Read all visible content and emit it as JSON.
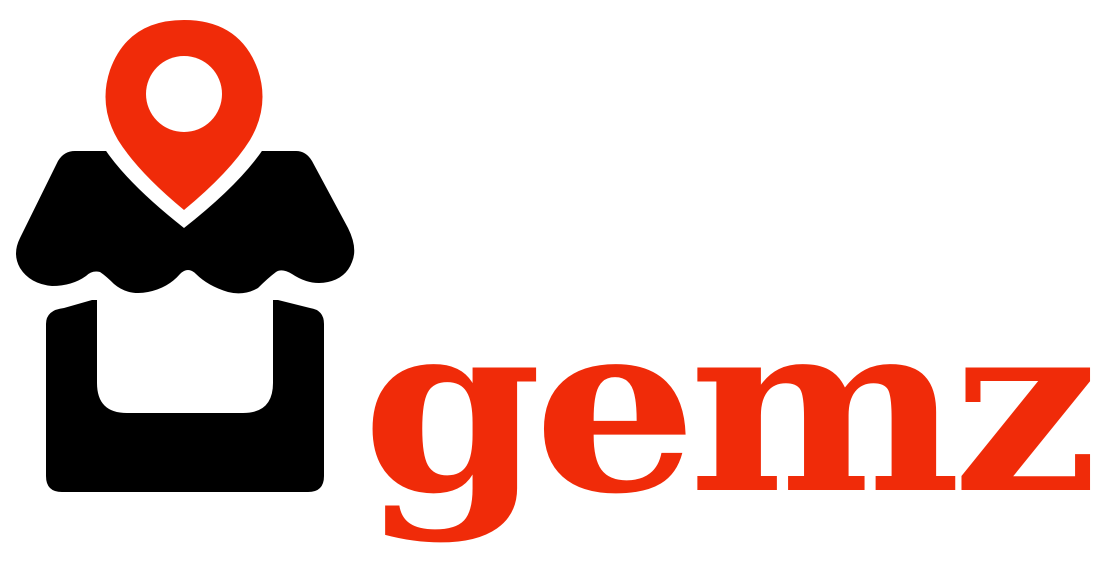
{
  "logo": {
    "wordmark": "gemz",
    "icon": "shop-location-pin-icon"
  },
  "colors": {
    "brand_red": "#f02b09",
    "ink": "#000000",
    "background": "#ffffff"
  }
}
